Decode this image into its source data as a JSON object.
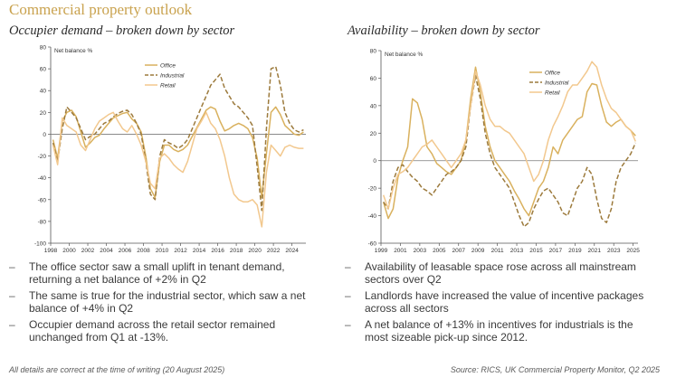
{
  "page_title": "Commercial property outlook",
  "footer": {
    "left": "All details are correct at the time of writing (20 August 2025)",
    "right": "Source: RICS, UK Commercial Property Monitor, Q2 2025"
  },
  "colors": {
    "office": "#d9b15e",
    "industrial": "#9c7a3c",
    "retail": "#f2c88e",
    "axis": "#555555",
    "title": "#c9a24e"
  },
  "bullets_left": [
    "The office sector saw a small uplift in tenant demand, returning a net balance of +2% in Q2",
    "The same is true for the industrial sector, which saw a net balance of +4% in Q2",
    "Occupier demand across the retail sector remained unchanged from Q1 at -13%."
  ],
  "bullets_right": [
    "Availability of leasable space rose across all mainstream sectors over Q2",
    "Landlords have increased the value of incentive packages across all sectors",
    "A net balance of +13% in incentives for industrials is the most sizeable pick-up since 2012."
  ],
  "chart_data": [
    {
      "type": "line",
      "title": "Occupier demand – broken down by sector",
      "ylabel": "Net balance %",
      "xlim": [
        1998,
        2025.5
      ],
      "ylim": [
        -100,
        80
      ],
      "xticks": [
        "1998",
        "2000",
        "2002",
        "2004",
        "2006",
        "2008",
        "2010",
        "2012",
        "2014",
        "2016",
        "2018",
        "2020",
        "2022",
        "2024"
      ],
      "yticks": [
        "80",
        "60",
        "40",
        "20",
        "0",
        "-20",
        "-40",
        "-60",
        "-80",
        "-100"
      ],
      "legend_position": "top-center",
      "series": [
        {
          "name": "Office",
          "style": "solid",
          "x": [
            1998.25,
            1998.75,
            1999.25,
            1999.75,
            2000.25,
            2000.75,
            2001.25,
            2001.75,
            2002.25,
            2002.75,
            2003.25,
            2003.75,
            2004.25,
            2004.75,
            2005.25,
            2005.75,
            2006.25,
            2006.75,
            2007.25,
            2007.75,
            2008.25,
            2008.75,
            2009.25,
            2009.75,
            2010.25,
            2010.75,
            2011.25,
            2011.75,
            2012.25,
            2012.75,
            2013.25,
            2013.75,
            2014.25,
            2014.75,
            2015.25,
            2015.75,
            2016.25,
            2016.75,
            2017.25,
            2017.75,
            2018.25,
            2018.75,
            2019.25,
            2019.75,
            2020.25,
            2020.75,
            2021.25,
            2021.75,
            2022.25,
            2022.75,
            2023.25,
            2023.75,
            2024.25,
            2024.75,
            2025.25
          ],
          "y": [
            -5,
            -22,
            12,
            20,
            22,
            16,
            2,
            -12,
            -8,
            -3,
            -1,
            5,
            10,
            15,
            17,
            19,
            20,
            14,
            10,
            2,
            -20,
            -50,
            -58,
            -25,
            -10,
            -10,
            -14,
            -16,
            -14,
            -10,
            -2,
            6,
            14,
            22,
            25,
            23,
            12,
            3,
            5,
            8,
            10,
            8,
            5,
            -3,
            -22,
            -58,
            -18,
            20,
            25,
            18,
            8,
            4,
            0,
            -1,
            2
          ]
        },
        {
          "name": "Industrial",
          "style": "dashed",
          "x": [
            1998.25,
            1998.75,
            1999.25,
            1999.75,
            2000.25,
            2000.75,
            2001.25,
            2001.75,
            2002.25,
            2002.75,
            2003.25,
            2003.75,
            2004.25,
            2004.75,
            2005.25,
            2005.75,
            2006.25,
            2006.75,
            2007.25,
            2007.75,
            2008.25,
            2008.75,
            2009.25,
            2009.75,
            2010.25,
            2010.75,
            2011.25,
            2011.75,
            2012.25,
            2012.75,
            2013.25,
            2013.75,
            2014.25,
            2014.75,
            2015.25,
            2015.75,
            2016.25,
            2016.75,
            2017.25,
            2017.75,
            2018.25,
            2018.75,
            2019.25,
            2019.75,
            2020.25,
            2020.75,
            2021.25,
            2021.75,
            2022.25,
            2022.75,
            2023.25,
            2023.75,
            2024.25,
            2024.75,
            2025.25
          ],
          "y": [
            -8,
            -25,
            5,
            25,
            20,
            15,
            5,
            -5,
            -2,
            0,
            5,
            10,
            12,
            16,
            19,
            21,
            22,
            18,
            10,
            0,
            -25,
            -55,
            -60,
            -20,
            -5,
            -8,
            -10,
            -13,
            -10,
            -5,
            5,
            15,
            25,
            35,
            45,
            50,
            55,
            42,
            35,
            28,
            25,
            20,
            15,
            8,
            -30,
            -70,
            5,
            60,
            62,
            45,
            20,
            10,
            4,
            2,
            4
          ]
        },
        {
          "name": "Retail",
          "style": "solid",
          "x": [
            1998.25,
            1998.75,
            1999.25,
            1999.75,
            2000.25,
            2000.75,
            2001.25,
            2001.75,
            2002.25,
            2002.75,
            2003.25,
            2003.75,
            2004.25,
            2004.75,
            2005.25,
            2005.75,
            2006.25,
            2006.75,
            2007.25,
            2007.75,
            2008.25,
            2008.75,
            2009.25,
            2009.75,
            2010.25,
            2010.75,
            2011.25,
            2011.75,
            2012.25,
            2012.75,
            2013.25,
            2013.75,
            2014.25,
            2014.75,
            2015.25,
            2015.75,
            2016.25,
            2016.75,
            2017.25,
            2017.75,
            2018.25,
            2018.75,
            2019.25,
            2019.75,
            2020.25,
            2020.75,
            2021.25,
            2021.75,
            2022.25,
            2022.75,
            2023.25,
            2023.75,
            2024.25,
            2024.75,
            2025.25
          ],
          "y": [
            -10,
            -28,
            15,
            8,
            5,
            2,
            -10,
            -15,
            -5,
            5,
            12,
            15,
            18,
            20,
            12,
            5,
            2,
            8,
            0,
            -10,
            -25,
            -45,
            -50,
            -22,
            -18,
            -22,
            -28,
            -32,
            -35,
            -25,
            -10,
            5,
            12,
            20,
            10,
            5,
            -5,
            -20,
            -40,
            -55,
            -60,
            -62,
            -62,
            -60,
            -65,
            -85,
            -35,
            -10,
            -15,
            -20,
            -12,
            -10,
            -12,
            -13,
            -13
          ]
        }
      ]
    },
    {
      "type": "line",
      "title": "Availability – broken down by sector",
      "ylabel": "Net balance %",
      "xlim": [
        1999,
        2025.5
      ],
      "ylim": [
        -60,
        80
      ],
      "xticks": [
        "1999",
        "2001",
        "2003",
        "2005",
        "2007",
        "2009",
        "2011",
        "2013",
        "2015",
        "2017",
        "2019",
        "2021",
        "2023",
        "2025"
      ],
      "yticks": [
        "80",
        "60",
        "40",
        "20",
        "0",
        "-20",
        "-40",
        "-60"
      ],
      "legend_position": "top-center",
      "series": [
        {
          "name": "Office",
          "style": "solid",
          "x": [
            1999.25,
            1999.75,
            2000.25,
            2000.75,
            2001.25,
            2001.75,
            2002.25,
            2002.75,
            2003.25,
            2003.75,
            2004.25,
            2004.75,
            2005.25,
            2005.75,
            2006.25,
            2006.75,
            2007.25,
            2007.75,
            2008.25,
            2008.75,
            2009.25,
            2009.75,
            2010.25,
            2010.75,
            2011.25,
            2011.75,
            2012.25,
            2012.75,
            2013.25,
            2013.75,
            2014.25,
            2014.75,
            2015.25,
            2015.75,
            2016.25,
            2016.75,
            2017.25,
            2017.75,
            2018.25,
            2018.75,
            2019.25,
            2019.75,
            2020.25,
            2020.75,
            2021.25,
            2021.75,
            2022.25,
            2022.75,
            2023.25,
            2023.75,
            2024.25,
            2024.75,
            2025.25
          ],
          "y": [
            -30,
            -42,
            -35,
            -12,
            0,
            10,
            45,
            42,
            30,
            10,
            5,
            -2,
            -5,
            -8,
            -10,
            -5,
            0,
            15,
            45,
            68,
            50,
            25,
            10,
            0,
            -5,
            -10,
            -15,
            -22,
            -28,
            -35,
            -40,
            -30,
            -20,
            -15,
            -5,
            10,
            5,
            15,
            20,
            25,
            30,
            32,
            50,
            56,
            55,
            40,
            28,
            25,
            28,
            30,
            25,
            22,
            18
          ]
        },
        {
          "name": "Industrial",
          "style": "dashed",
          "x": [
            1999.25,
            1999.75,
            2000.25,
            2000.75,
            2001.25,
            2001.75,
            2002.25,
            2002.75,
            2003.25,
            2003.75,
            2004.25,
            2004.75,
            2005.25,
            2005.75,
            2006.25,
            2006.75,
            2007.25,
            2007.75,
            2008.25,
            2008.75,
            2009.25,
            2009.75,
            2010.25,
            2010.75,
            2011.25,
            2011.75,
            2012.25,
            2012.75,
            2013.25,
            2013.75,
            2014.25,
            2014.75,
            2015.25,
            2015.75,
            2016.25,
            2016.75,
            2017.25,
            2017.75,
            2018.25,
            2018.75,
            2019.25,
            2019.75,
            2020.25,
            2020.75,
            2021.25,
            2021.75,
            2022.25,
            2022.75,
            2023.25,
            2023.75,
            2024.25,
            2024.75,
            2025.25
          ],
          "y": [
            -30,
            -35,
            -15,
            -5,
            -3,
            -8,
            -12,
            -15,
            -20,
            -22,
            -25,
            -20,
            -15,
            -10,
            -8,
            -5,
            0,
            10,
            40,
            62,
            45,
            20,
            5,
            -5,
            -10,
            -15,
            -20,
            -30,
            -40,
            -48,
            -45,
            -35,
            -28,
            -22,
            -20,
            -25,
            -30,
            -38,
            -40,
            -30,
            -20,
            -15,
            -5,
            -10,
            -28,
            -42,
            -45,
            -35,
            -15,
            -5,
            0,
            5,
            13
          ]
        },
        {
          "name": "Retail",
          "style": "solid",
          "x": [
            1999.25,
            1999.75,
            2000.25,
            2000.75,
            2001.25,
            2001.75,
            2002.25,
            2002.75,
            2003.25,
            2003.75,
            2004.25,
            2004.75,
            2005.25,
            2005.75,
            2006.25,
            2006.75,
            2007.25,
            2007.75,
            2008.25,
            2008.75,
            2009.25,
            2009.75,
            2010.25,
            2010.75,
            2011.25,
            2011.75,
            2012.25,
            2012.75,
            2013.25,
            2013.75,
            2014.25,
            2014.75,
            2015.25,
            2015.75,
            2016.25,
            2016.75,
            2017.25,
            2017.75,
            2018.25,
            2018.75,
            2019.25,
            2019.75,
            2020.25,
            2020.75,
            2021.25,
            2021.75,
            2022.25,
            2022.75,
            2023.25,
            2023.75,
            2024.25,
            2024.75,
            2025.25
          ],
          "y": [
            -25,
            -35,
            -20,
            -10,
            -8,
            -5,
            0,
            5,
            10,
            12,
            15,
            10,
            5,
            0,
            -5,
            0,
            5,
            15,
            40,
            65,
            55,
            40,
            30,
            25,
            25,
            22,
            20,
            15,
            10,
            5,
            -5,
            -15,
            -10,
            0,
            15,
            25,
            32,
            40,
            50,
            55,
            55,
            60,
            65,
            72,
            68,
            55,
            45,
            38,
            35,
            30,
            25,
            22,
            14
          ]
        }
      ]
    }
  ]
}
